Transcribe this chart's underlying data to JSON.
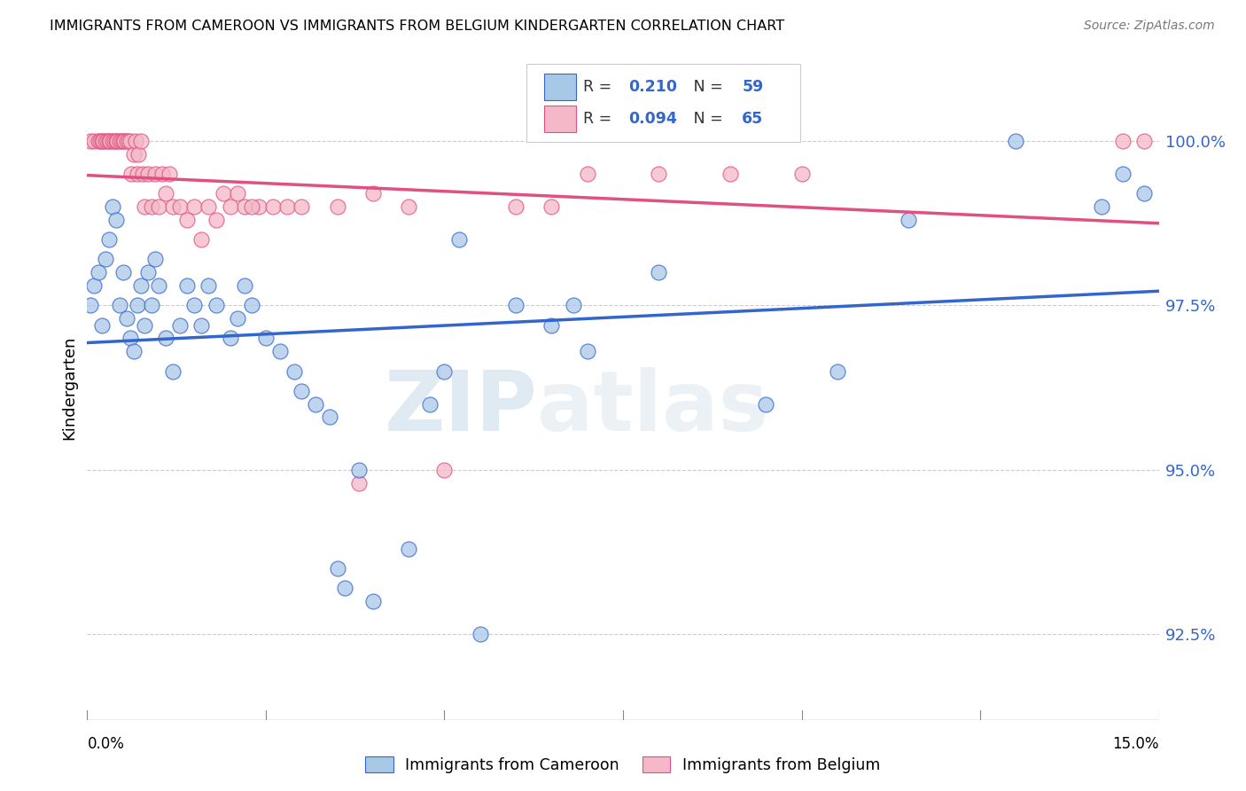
{
  "title": "IMMIGRANTS FROM CAMEROON VS IMMIGRANTS FROM BELGIUM KINDERGARTEN CORRELATION CHART",
  "source": "Source: ZipAtlas.com",
  "ylabel": "Kindergarten",
  "ytick_values": [
    92.5,
    95.0,
    97.5,
    100.0
  ],
  "xlim": [
    0.0,
    15.0
  ],
  "ylim": [
    91.2,
    101.3
  ],
  "color_cameroon": "#A8C8E8",
  "color_belgium": "#F4B8C8",
  "color_line_cameroon": "#3366CC",
  "color_line_belgium": "#E05080",
  "watermark_zip": "ZIP",
  "watermark_atlas": "atlas",
  "cameroon_x": [
    0.05,
    0.1,
    0.15,
    0.2,
    0.25,
    0.3,
    0.35,
    0.4,
    0.45,
    0.5,
    0.55,
    0.6,
    0.65,
    0.7,
    0.75,
    0.8,
    0.85,
    0.9,
    0.95,
    1.0,
    1.1,
    1.2,
    1.3,
    1.4,
    1.5,
    1.6,
    1.7,
    1.8,
    2.0,
    2.1,
    2.2,
    2.3,
    2.5,
    2.7,
    2.9,
    3.0,
    3.2,
    3.4,
    3.5,
    3.6,
    4.0,
    4.5,
    5.0,
    5.5,
    6.0,
    6.5,
    7.0,
    8.0,
    9.5,
    10.5,
    11.5,
    13.0,
    14.2,
    14.5,
    14.8,
    5.2,
    4.8,
    3.8,
    6.8
  ],
  "cameroon_y": [
    97.5,
    97.8,
    98.0,
    97.2,
    98.2,
    98.5,
    99.0,
    98.8,
    97.5,
    98.0,
    97.3,
    97.0,
    96.8,
    97.5,
    97.8,
    97.2,
    98.0,
    97.5,
    98.2,
    97.8,
    97.0,
    96.5,
    97.2,
    97.8,
    97.5,
    97.2,
    97.8,
    97.5,
    97.0,
    97.3,
    97.8,
    97.5,
    97.0,
    96.8,
    96.5,
    96.2,
    96.0,
    95.8,
    93.5,
    93.2,
    93.0,
    93.8,
    96.5,
    92.5,
    97.5,
    97.2,
    96.8,
    98.0,
    96.0,
    96.5,
    98.8,
    100.0,
    99.0,
    99.5,
    99.2,
    98.5,
    96.0,
    95.0,
    97.5
  ],
  "belgium_x": [
    0.05,
    0.1,
    0.15,
    0.18,
    0.2,
    0.22,
    0.25,
    0.28,
    0.3,
    0.32,
    0.35,
    0.38,
    0.4,
    0.42,
    0.45,
    0.48,
    0.5,
    0.52,
    0.55,
    0.58,
    0.6,
    0.62,
    0.65,
    0.68,
    0.7,
    0.72,
    0.75,
    0.78,
    0.8,
    0.85,
    0.9,
    0.95,
    1.0,
    1.05,
    1.1,
    1.15,
    1.2,
    1.3,
    1.4,
    1.5,
    1.6,
    1.7,
    1.8,
    1.9,
    2.0,
    2.1,
    2.2,
    2.4,
    2.6,
    2.8,
    3.0,
    3.5,
    4.0,
    5.0,
    6.0,
    6.5,
    7.0,
    8.0,
    9.0,
    10.0,
    2.3,
    3.8,
    4.5,
    14.5,
    14.8
  ],
  "belgium_y": [
    100.0,
    100.0,
    100.0,
    100.0,
    100.0,
    100.0,
    100.0,
    100.0,
    100.0,
    100.0,
    100.0,
    100.0,
    100.0,
    100.0,
    100.0,
    100.0,
    100.0,
    100.0,
    100.0,
    100.0,
    100.0,
    99.5,
    99.8,
    100.0,
    99.5,
    99.8,
    100.0,
    99.5,
    99.0,
    99.5,
    99.0,
    99.5,
    99.0,
    99.5,
    99.2,
    99.5,
    99.0,
    99.0,
    98.8,
    99.0,
    98.5,
    99.0,
    98.8,
    99.2,
    99.0,
    99.2,
    99.0,
    99.0,
    99.0,
    99.0,
    99.0,
    99.0,
    99.2,
    95.0,
    99.0,
    99.0,
    99.5,
    99.5,
    99.5,
    99.5,
    99.0,
    94.8,
    99.0,
    100.0,
    100.0
  ]
}
